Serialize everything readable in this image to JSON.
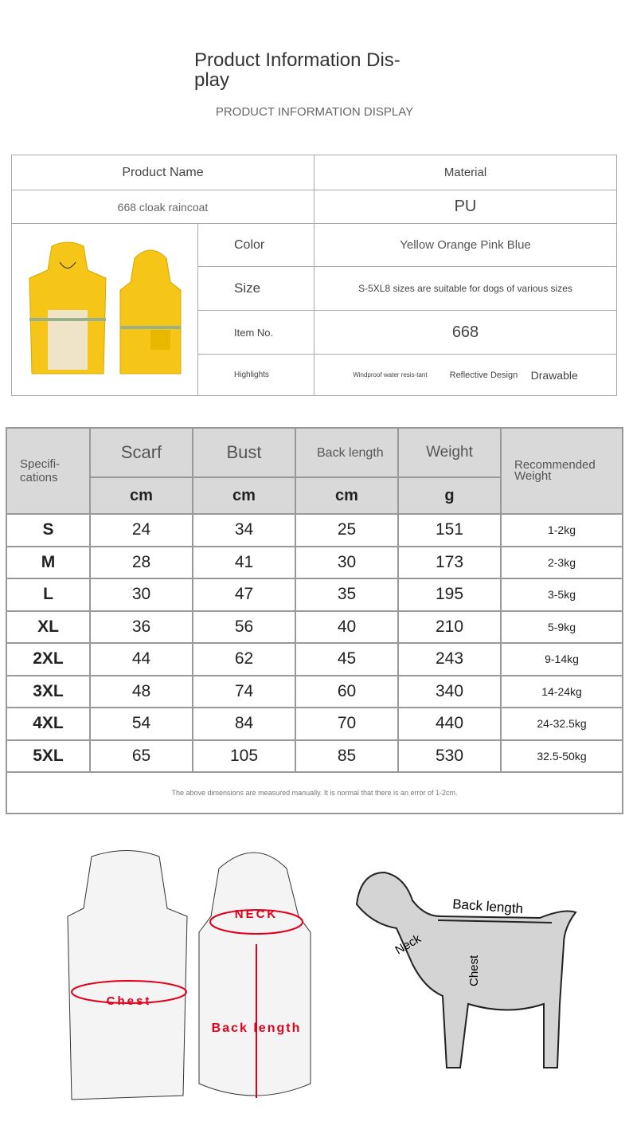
{
  "header": {
    "title": "Product Information Dis-play",
    "subtitle": "PRODUCT INFORMATION DISPLAY"
  },
  "info": {
    "product_name_label": "Product Name",
    "material_label": "Material",
    "product_name": "668 cloak raincoat",
    "material": "PU",
    "color_label": "Color",
    "color": "Yellow Orange Pink Blue",
    "size_label": "Size",
    "size": "S-5XL8 sizes are suitable for dogs of various sizes",
    "item_label": "Item No.",
    "item": "668",
    "highlights_label": "Highlights",
    "highlights": [
      "Windproof water resis-tant",
      "Reflective Design",
      "Drawable"
    ],
    "product_color": "#f5c518"
  },
  "size_table": {
    "spec_label": "Specifi-cations",
    "columns": [
      {
        "name": "Scarf",
        "unit": "cm"
      },
      {
        "name": "Bust",
        "unit": "cm"
      },
      {
        "name": "Back length",
        "unit": "cm"
      },
      {
        "name": "Weight",
        "unit": "g"
      }
    ],
    "recommended_label": "Recommended Weight",
    "rows": [
      [
        "S",
        "24",
        "34",
        "25",
        "151",
        "1-2kg"
      ],
      [
        "M",
        "28",
        "41",
        "30",
        "173",
        "2-3kg"
      ],
      [
        "L",
        "30",
        "47",
        "35",
        "195",
        "3-5kg"
      ],
      [
        "XL",
        "36",
        "56",
        "40",
        "210",
        "5-9kg"
      ],
      [
        "2XL",
        "44",
        "62",
        "45",
        "243",
        "9-14kg"
      ],
      [
        "3XL",
        "48",
        "74",
        "60",
        "340",
        "14-24kg"
      ],
      [
        "4XL",
        "54",
        "84",
        "70",
        "440",
        "24-32.5kg"
      ],
      [
        "5XL",
        "65",
        "105",
        "85",
        "530",
        "32.5-50kg"
      ]
    ],
    "note": "The above dimensions are measured manually. It is normal that there is an error of 1-2cm."
  },
  "diagram": {
    "neck": "NECK",
    "chest": "Chest",
    "back_length": "Back length",
    "dog_back_length": "Back length",
    "dog_neck": "Neck",
    "dog_chest": "Chest",
    "accent": "#e0001a"
  }
}
